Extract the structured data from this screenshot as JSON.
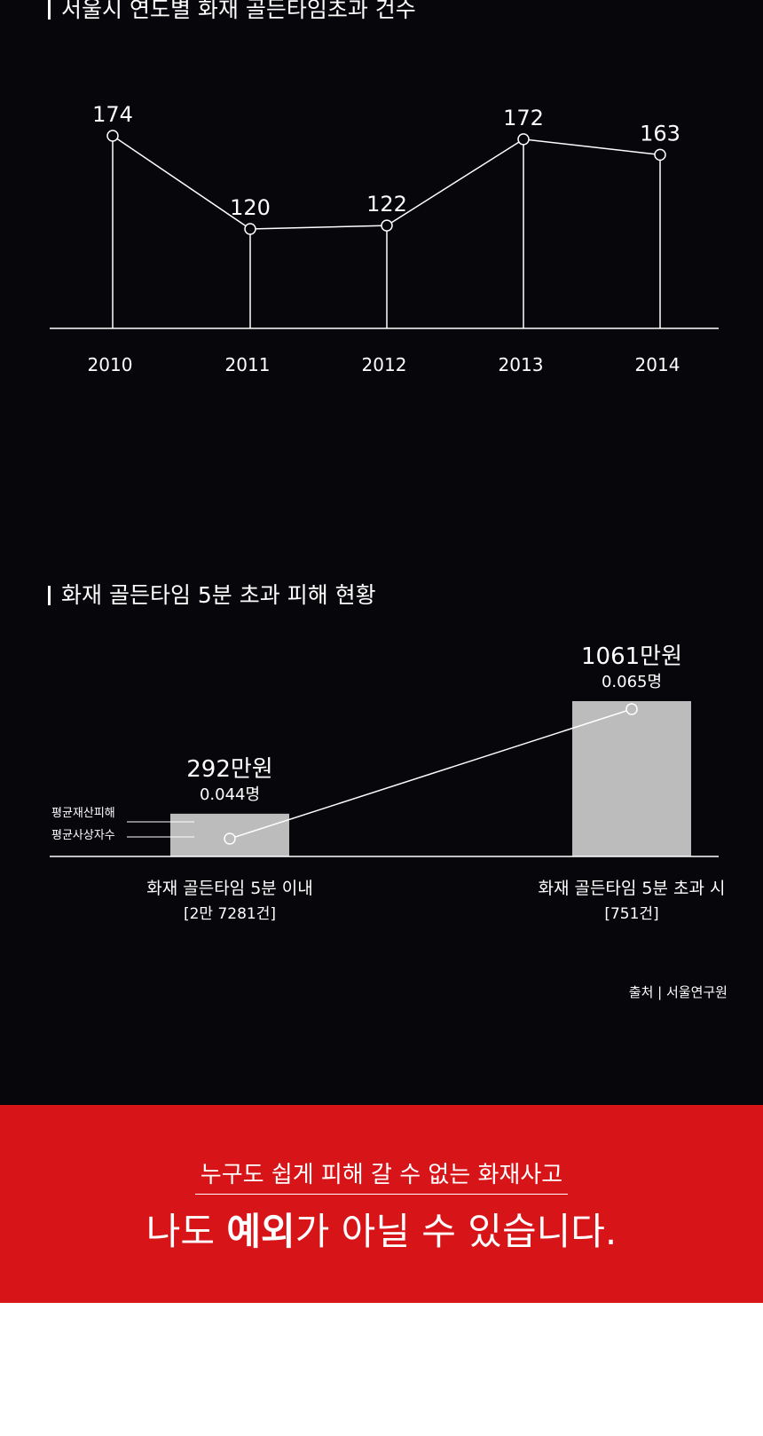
{
  "chart_data": [
    {
      "type": "line",
      "title": "서울시 연도별 화재 골든타임초과 건수",
      "categories": [
        "2010",
        "2011",
        "2012",
        "2013",
        "2014"
      ],
      "values": [
        174,
        120,
        122,
        172,
        163
      ],
      "xlabel": "",
      "ylabel": "",
      "grid": false,
      "ylim": [
        0,
        200
      ]
    },
    {
      "type": "bar",
      "title": "화재 골든타임 5분 초과 피해 현황",
      "categories": [
        {
          "label": "화재 골든타임 5분 이내",
          "count": "[2만 7281건]"
        },
        {
          "label": "화재 골든타임 5분 초과 시",
          "count": "[751건]"
        }
      ],
      "series": [
        {
          "name": "평균재산피해",
          "values": [
            292,
            1061
          ],
          "value_labels": [
            "292만원",
            "1061만원"
          ]
        },
        {
          "name": "평균사상자수",
          "values": [
            0.044,
            0.065
          ],
          "value_labels": [
            "0.044명",
            "0.065명"
          ]
        }
      ],
      "bar_color": "#bcbcbc",
      "ylim": [
        0,
        1100
      ]
    }
  ],
  "source": "출처 | 서울연구원",
  "banner": {
    "subtitle": "누구도 쉽게 피해 갈 수 없는 화재사고",
    "title_before": "나도 ",
    "title_bold": "예외",
    "title_after": "가 아닐 수 있습니다."
  },
  "colors": {
    "background": "#07060b",
    "banner": "#d71519",
    "text": "#ffffff"
  }
}
